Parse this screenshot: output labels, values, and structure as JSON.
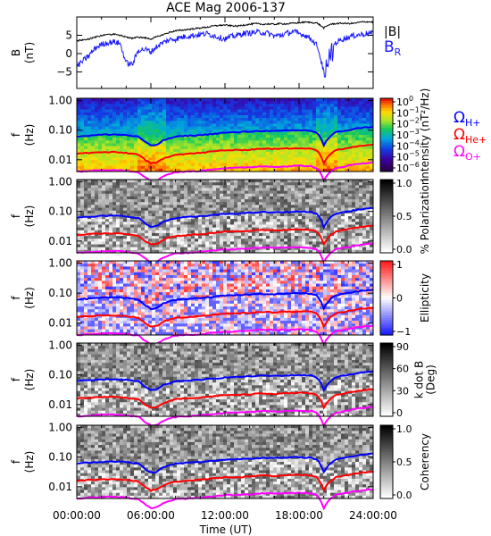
{
  "figure": {
    "title": "ACE Mag 2006-137",
    "xlabel": "Time (UT)",
    "xticks": [
      "00:00:00",
      "06:00:00",
      "12:00:00",
      "18:00:00",
      "24:00:00"
    ]
  },
  "colors": {
    "B": "#000000",
    "BR": "#1a1aff",
    "h": "#0000ff",
    "he": "#ff0000",
    "o": "#ff00ff"
  },
  "chart_data": [
    {
      "type": "line",
      "panel": "field",
      "ylabel_top": "B",
      "ylabel_bottom": "(nT)",
      "ylim": [
        -9.5,
        10
      ],
      "yticks": [
        5,
        0,
        -5
      ],
      "ytick_labels": [
        "5",
        "0",
        "−5"
      ],
      "x_hours": [
        0,
        0.5,
        1,
        1.5,
        2,
        2.5,
        3,
        3.5,
        4,
        4.5,
        5,
        5.5,
        6,
        6.5,
        7,
        7.5,
        8,
        8.5,
        9,
        9.5,
        10,
        10.5,
        11,
        11.5,
        12,
        12.5,
        13,
        13.5,
        14,
        14.5,
        15,
        15.5,
        16,
        16.5,
        17,
        17.5,
        18,
        18.5,
        19,
        19.5,
        20,
        20.5,
        21,
        21.5,
        22,
        22.5,
        23,
        23.5,
        24
      ],
      "series": [
        {
          "name": "|B|",
          "color_key": "B",
          "values": [
            3.5,
            3.8,
            4,
            4.5,
            5,
            5.2,
            5.3,
            5,
            4.5,
            4.2,
            4.5,
            4.3,
            4,
            4.6,
            5.2,
            5.8,
            6.2,
            6.4,
            6.6,
            6.8,
            7,
            7.2,
            7.5,
            7.7,
            7.8,
            7.6,
            7.5,
            7.8,
            8,
            8.2,
            8,
            8.1,
            8,
            8.2,
            8.1,
            8.3,
            8.4,
            8.6,
            8.5,
            8.3,
            7,
            8,
            8.2,
            8.3,
            8.2,
            8.3,
            8.6,
            8.7,
            8.6
          ]
        },
        {
          "name": "B",
          "name_sub": "R",
          "color_key": "BR",
          "values": [
            -3.5,
            -2,
            -0.5,
            1.5,
            2.5,
            3,
            3.2,
            2.8,
            -2.5,
            -3,
            1,
            1.2,
            0.5,
            2,
            3,
            3.8,
            4,
            4.5,
            4.8,
            5,
            5.2,
            5.5,
            5,
            4.5,
            4,
            4.6,
            5,
            5.5,
            5.6,
            5.8,
            5.8,
            5.5,
            4.8,
            5,
            5.5,
            6,
            5.5,
            5,
            4,
            2,
            -5,
            2,
            3,
            4,
            4.5,
            5,
            5.2,
            5.5,
            5.5
          ]
        }
      ]
    },
    {
      "type": "heatmap",
      "panel": "intensity",
      "ylabel_top": "f",
      "ylabel_bottom": "(Hz)",
      "ylim": [
        0.004,
        1.2
      ],
      "yscale": "log",
      "yticks": [
        1,
        0.1,
        0.01
      ],
      "ytick_labels": [
        "1.00",
        "0.10",
        "0.01"
      ],
      "colorbar_label": "Intensity (nT²/Hz)",
      "colorbar_ticks": [
        "10⁰",
        "10⁻¹",
        "10⁻²",
        "10⁻³",
        "10⁻⁴",
        "10⁻⁵",
        "10⁻⁶"
      ],
      "colorbar_ticks_base": [
        "10",
        "10",
        "10",
        "10",
        "10",
        "10",
        "10"
      ],
      "colorbar_ticks_exp": [
        "0",
        "−1",
        "−2",
        "−3",
        "−4",
        "−5",
        "−6"
      ],
      "colormap": "rainbow",
      "legend": [
        {
          "label": "Ω",
          "sub": "H+",
          "color_key": "h"
        },
        {
          "label": "Ω",
          "sub": "He+",
          "color_key": "he"
        },
        {
          "label": "Ω",
          "sub": "O+",
          "color_key": "o"
        }
      ]
    },
    {
      "type": "heatmap",
      "panel": "polarization",
      "ylabel_top": "f",
      "ylabel_bottom": "(Hz)",
      "yscale": "log",
      "yticks": [
        1,
        0.1,
        0.01
      ],
      "ytick_labels": [
        "1.00",
        "0.10",
        "0.01"
      ],
      "colorbar_label": "% Polarization",
      "colorbar_ticks": [
        "1.0",
        "0.5",
        "0.0"
      ],
      "colormap": "gray"
    },
    {
      "type": "heatmap",
      "panel": "ellipticity",
      "ylabel_top": "f",
      "ylabel_bottom": "(Hz)",
      "yscale": "log",
      "yticks": [
        1,
        0.1,
        0.01
      ],
      "ytick_labels": [
        "1.00",
        "0.10",
        "0.01"
      ],
      "colorbar_label": "Ellipticity",
      "colorbar_ticks": [
        "1",
        "0",
        "−1"
      ],
      "colormap": "bluewhitered"
    },
    {
      "type": "heatmap",
      "panel": "kdotb",
      "ylabel_top": "f",
      "ylabel_bottom": "(Hz)",
      "yscale": "log",
      "yticks": [
        1,
        0.1,
        0.01
      ],
      "ytick_labels": [
        "1.00",
        "0.10",
        "0.01"
      ],
      "colorbar_label": "k dot B (Deg)",
      "colorbar_label_lines": [
        "k dot B",
        "(Deg)"
      ],
      "colorbar_ticks": [
        "90",
        "60",
        "30",
        "0"
      ],
      "colormap": "gray"
    },
    {
      "type": "heatmap",
      "panel": "coherency",
      "ylabel_top": "f",
      "ylabel_bottom": "(Hz)",
      "yscale": "log",
      "yticks": [
        1,
        0.1,
        0.01
      ],
      "ytick_labels": [
        "1.00",
        "0.10",
        "0.01"
      ],
      "colorbar_label": "Coherency",
      "colorbar_ticks": [
        "1.0",
        "0.5",
        "0.0"
      ],
      "colormap": "gray"
    }
  ],
  "gyro_lines": {
    "x_hours": [
      0,
      1,
      2,
      3,
      4,
      5,
      5.5,
      6,
      6.5,
      7,
      8,
      9,
      10,
      11,
      12,
      13,
      14,
      15,
      16,
      17,
      18,
      19,
      19.5,
      20,
      20.5,
      21,
      22,
      23,
      24
    ],
    "H+": [
      0.062,
      0.065,
      0.07,
      0.072,
      0.068,
      0.06,
      0.04,
      0.03,
      0.032,
      0.045,
      0.06,
      0.065,
      0.068,
      0.075,
      0.082,
      0.085,
      0.09,
      0.095,
      0.093,
      0.096,
      0.1,
      0.095,
      0.08,
      0.03,
      0.06,
      0.085,
      0.1,
      0.12,
      0.13
    ],
    "He+": [
      0.016,
      0.017,
      0.018,
      0.018,
      0.017,
      0.015,
      0.01,
      0.0075,
      0.008,
      0.011,
      0.015,
      0.016,
      0.017,
      0.019,
      0.021,
      0.021,
      0.022,
      0.024,
      0.023,
      0.024,
      0.025,
      0.024,
      0.02,
      0.0075,
      0.015,
      0.021,
      0.025,
      0.03,
      0.033
    ],
    "O+": [
      0.004,
      0.0042,
      0.0045,
      0.0046,
      0.0043,
      0.0038,
      0.0026,
      0.0019,
      0.002,
      0.0028,
      0.0038,
      0.004,
      0.0042,
      0.0048,
      0.0052,
      0.0053,
      0.0056,
      0.006,
      0.0058,
      0.006,
      0.0063,
      0.006,
      0.005,
      0.0019,
      0.0038,
      0.0053,
      0.0063,
      0.0075,
      0.0082
    ]
  }
}
